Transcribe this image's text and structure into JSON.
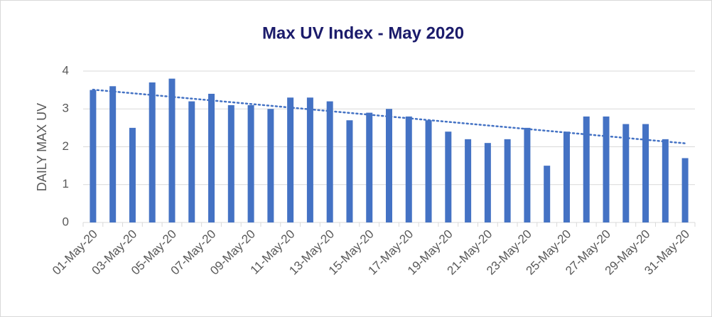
{
  "chart_data": {
    "type": "bar",
    "title": "Max UV Index - May 2020",
    "y_label": "DAILY MAX UV",
    "categories": [
      "01-May-20",
      null,
      "03-May-20",
      null,
      "05-May-20",
      null,
      "07-May-20",
      null,
      "09-May-20",
      null,
      "11-May-20",
      null,
      "13-May-20",
      null,
      "15-May-20",
      null,
      "17-May-20",
      null,
      "19-May-20",
      null,
      "21-May-20",
      null,
      "23-May-20",
      null,
      "25-May-20",
      null,
      "27-May-20",
      null,
      "29-May-20",
      null,
      "31-May-20"
    ],
    "values": [
      3.5,
      3.6,
      2.5,
      3.7,
      3.8,
      3.2,
      3.4,
      3.1,
      3.1,
      3.0,
      3.3,
      3.3,
      3.2,
      2.7,
      2.9,
      3.0,
      2.8,
      2.7,
      2.4,
      2.2,
      2.1,
      2.2,
      2.5,
      1.5,
      2.4,
      2.8,
      2.8,
      2.6,
      2.6,
      2.2,
      1.7
    ],
    "color": "#4472c4",
    "ylim": [
      0,
      4
    ],
    "yticks": [
      0,
      1,
      2,
      3,
      4
    ],
    "grid": true,
    "trendline": true
  }
}
